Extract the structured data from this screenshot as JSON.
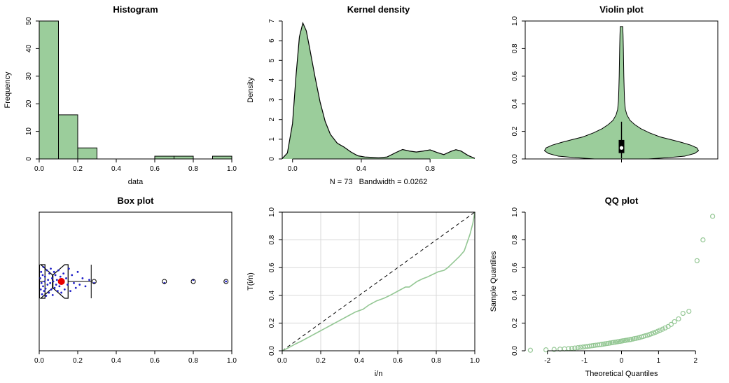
{
  "figure": {
    "background": "#ffffff"
  },
  "palette": {
    "green_fill": "#9BCD9B",
    "green_line": "#94C794",
    "black": "#000000",
    "blue": "#2020C8",
    "red": "#E80000",
    "grid": "#D9D9D9",
    "white": "#FFFFFF"
  },
  "chart_data": [
    {
      "type": "hist",
      "title": "Histogram",
      "xlabel": "data",
      "ylabel": "Frequency",
      "frame": "axes",
      "xlim": [
        0,
        1
      ],
      "ylim": [
        0,
        50
      ],
      "xticks": [
        0,
        0.2,
        0.4,
        0.6,
        0.8,
        1
      ],
      "xtick_labels": [
        "0.0",
        "0.2",
        "0.4",
        "0.6",
        "0.8",
        "1.0"
      ],
      "yticks": [
        0,
        10,
        20,
        30,
        40,
        50
      ],
      "ytick_labels": [
        "0",
        "10",
        "20",
        "30",
        "40",
        "50"
      ],
      "breaks": [
        0,
        0.1,
        0.2,
        0.3,
        0.4,
        0.5,
        0.6,
        0.7,
        0.8,
        0.9,
        1
      ],
      "counts": [
        50,
        16,
        4,
        0,
        0,
        0,
        1,
        1,
        0,
        1
      ]
    },
    {
      "type": "density",
      "title": "Kernel density",
      "xlabel": "N = 73   Bandwidth = 0.0262",
      "ylabel": "Density",
      "frame": "axes",
      "xlim": [
        -0.06,
        1.06
      ],
      "ylim": [
        0,
        7
      ],
      "xticks": [
        0,
        0.4,
        0.8
      ],
      "xtick_labels": [
        "0.0",
        "0.4",
        "0.8"
      ],
      "yticks": [
        0,
        1,
        2,
        3,
        4,
        5,
        6,
        7
      ],
      "ytick_labels": [
        "0",
        "1",
        "2",
        "3",
        "4",
        "5",
        "6",
        "7"
      ],
      "points": [
        [
          -0.06,
          0.02
        ],
        [
          -0.03,
          0.3
        ],
        [
          0,
          1.8
        ],
        [
          0.02,
          4.2
        ],
        [
          0.04,
          6.2
        ],
        [
          0.06,
          6.9
        ],
        [
          0.08,
          6.5
        ],
        [
          0.1,
          5.6
        ],
        [
          0.13,
          4.2
        ],
        [
          0.16,
          2.9
        ],
        [
          0.19,
          1.9
        ],
        [
          0.22,
          1.25
        ],
        [
          0.26,
          0.8
        ],
        [
          0.3,
          0.6
        ],
        [
          0.34,
          0.35
        ],
        [
          0.38,
          0.16
        ],
        [
          0.42,
          0.1
        ],
        [
          0.46,
          0.08
        ],
        [
          0.5,
          0.06
        ],
        [
          0.55,
          0.1
        ],
        [
          0.6,
          0.32
        ],
        [
          0.64,
          0.48
        ],
        [
          0.68,
          0.4
        ],
        [
          0.72,
          0.35
        ],
        [
          0.76,
          0.4
        ],
        [
          0.8,
          0.46
        ],
        [
          0.84,
          0.33
        ],
        [
          0.88,
          0.22
        ],
        [
          0.92,
          0.38
        ],
        [
          0.95,
          0.47
        ],
        [
          0.98,
          0.4
        ],
        [
          1.02,
          0.18
        ],
        [
          1.06,
          0.03
        ]
      ]
    },
    {
      "type": "violin",
      "title": "Violin plot",
      "xlabel": "",
      "ylabel": "",
      "frame": "box",
      "ylim": [
        0,
        1
      ],
      "yticks": [
        0,
        0.2,
        0.4,
        0.6,
        0.8,
        1
      ],
      "ytick_labels": [
        "0.0",
        "0.2",
        "0.4",
        "0.6",
        "0.8",
        "1.0"
      ],
      "profile": [
        [
          0,
          0.35
        ],
        [
          0.01,
          0.62
        ],
        [
          0.02,
          0.82
        ],
        [
          0.04,
          0.95
        ],
        [
          0.06,
          1
        ],
        [
          0.08,
          0.98
        ],
        [
          0.1,
          0.9
        ],
        [
          0.12,
          0.78
        ],
        [
          0.14,
          0.64
        ],
        [
          0.16,
          0.5
        ],
        [
          0.19,
          0.36
        ],
        [
          0.22,
          0.25
        ],
        [
          0.25,
          0.17
        ],
        [
          0.28,
          0.11
        ],
        [
          0.32,
          0.07
        ],
        [
          0.36,
          0.05
        ],
        [
          0.42,
          0.04
        ],
        [
          0.5,
          0.035
        ],
        [
          0.6,
          0.03
        ],
        [
          0.7,
          0.027
        ],
        [
          0.8,
          0.024
        ],
        [
          0.9,
          0.02
        ],
        [
          0.96,
          0.016
        ]
      ],
      "box": {
        "q1": 0.045,
        "median": 0.08,
        "q3": 0.135,
        "whisker_low": 0.005,
        "whisker_high": 0.27
      }
    },
    {
      "type": "boxh",
      "title": "Box plot",
      "xlabel": "",
      "ylabel": "",
      "frame": "box",
      "xlim": [
        0,
        1
      ],
      "xticks": [
        0,
        0.2,
        0.4,
        0.6,
        0.8,
        1
      ],
      "xtick_labels": [
        "0.0",
        "0.2",
        "0.4",
        "0.6",
        "0.8",
        "1.0"
      ],
      "box": {
        "q1": 0.03,
        "median": 0.07,
        "q3": 0.15,
        "notch_low": 0.008,
        "notch_high": 0.132,
        "whisker_low": 0.002,
        "whisker_high": 0.27
      },
      "outliers": [
        0.285,
        0.65,
        0.8,
        0.97
      ],
      "mean": 0.115,
      "jitter": [
        [
          0.005,
          -0.2
        ],
        [
          0.008,
          0.5
        ],
        [
          0.01,
          -0.6
        ],
        [
          0.012,
          0.1
        ],
        [
          0.015,
          0.8
        ],
        [
          0.018,
          -0.4
        ],
        [
          0.02,
          0.3
        ],
        [
          0.022,
          -0.9
        ],
        [
          0.025,
          0.6
        ],
        [
          0.028,
          0
        ],
        [
          0.03,
          -0.3
        ],
        [
          0.033,
          0.45
        ],
        [
          0.036,
          0.9
        ],
        [
          0.04,
          -0.7
        ],
        [
          0.043,
          0.2
        ],
        [
          0.046,
          -0.1
        ],
        [
          0.05,
          0.7
        ],
        [
          0.053,
          -0.5
        ],
        [
          0.057,
          0.1
        ],
        [
          0.06,
          -0.8
        ],
        [
          0.063,
          0.5
        ],
        [
          0.067,
          -0.2
        ],
        [
          0.07,
          0.85
        ],
        [
          0.073,
          0
        ],
        [
          0.077,
          -0.6
        ],
        [
          0.08,
          0.4
        ],
        [
          0.084,
          -0.4
        ],
        [
          0.088,
          0.2
        ],
        [
          0.092,
          -0.1
        ],
        [
          0.096,
          0.6
        ],
        [
          0.1,
          -0.7
        ],
        [
          0.105,
          0.3
        ],
        [
          0.11,
          -0.3
        ],
        [
          0.115,
          0.7
        ],
        [
          0.12,
          0
        ],
        [
          0.126,
          -0.5
        ],
        [
          0.132,
          0.5
        ],
        [
          0.14,
          -0.2
        ],
        [
          0.147,
          0.2
        ],
        [
          0.154,
          -0.8
        ],
        [
          0.162,
          0.6
        ],
        [
          0.17,
          -0.4
        ],
        [
          0.18,
          0.1
        ],
        [
          0.19,
          0.4
        ],
        [
          0.2,
          -0.6
        ],
        [
          0.21,
          0.2
        ],
        [
          0.225,
          -0.2
        ],
        [
          0.24,
          0.3
        ],
        [
          0.26,
          -0.1
        ],
        [
          0.285,
          0.1
        ],
        [
          0.65,
          0.1
        ],
        [
          0.8,
          -0.1
        ],
        [
          0.97,
          0
        ]
      ]
    },
    {
      "type": "ttt",
      "title": "",
      "xlabel": "i/n",
      "ylabel": "T(i/n)",
      "frame": "box",
      "grid": true,
      "xlim": [
        0,
        1
      ],
      "ylim": [
        0,
        1
      ],
      "xticks": [
        0,
        0.2,
        0.4,
        0.6,
        0.8,
        1
      ],
      "xtick_labels": [
        "0.0",
        "0.2",
        "0.4",
        "0.6",
        "0.8",
        "1.0"
      ],
      "yticks": [
        0,
        0.2,
        0.4,
        0.6,
        0.8,
        1
      ],
      "ytick_labels": [
        "0.0",
        "0.2",
        "0.4",
        "0.6",
        "0.8",
        "1.0"
      ],
      "points": [
        [
          0,
          0
        ],
        [
          0.03,
          0.02
        ],
        [
          0.07,
          0.05
        ],
        [
          0.1,
          0.07
        ],
        [
          0.14,
          0.1
        ],
        [
          0.18,
          0.13
        ],
        [
          0.22,
          0.16
        ],
        [
          0.26,
          0.19
        ],
        [
          0.3,
          0.22
        ],
        [
          0.34,
          0.25
        ],
        [
          0.38,
          0.28
        ],
        [
          0.42,
          0.3
        ],
        [
          0.45,
          0.33
        ],
        [
          0.49,
          0.36
        ],
        [
          0.53,
          0.38
        ],
        [
          0.56,
          0.4
        ],
        [
          0.6,
          0.43
        ],
        [
          0.64,
          0.46
        ],
        [
          0.66,
          0.46
        ],
        [
          0.7,
          0.5
        ],
        [
          0.73,
          0.52
        ],
        [
          0.75,
          0.53
        ],
        [
          0.78,
          0.55
        ],
        [
          0.81,
          0.57
        ],
        [
          0.84,
          0.58
        ],
        [
          0.86,
          0.6
        ],
        [
          0.89,
          0.64
        ],
        [
          0.92,
          0.68
        ],
        [
          0.945,
          0.72
        ],
        [
          0.96,
          0.78
        ],
        [
          0.975,
          0.84
        ],
        [
          0.99,
          0.92
        ],
        [
          1,
          1
        ]
      ]
    },
    {
      "type": "qq",
      "title": "QQ plot",
      "xlabel": "Theoretical Quantiles",
      "ylabel": "Sample Quantiles",
      "frame": "axes",
      "xlim": [
        -2.6,
        2.6
      ],
      "ylim": [
        0,
        1
      ],
      "xticks": [
        -2,
        -1,
        0,
        1,
        2
      ],
      "xtick_labels": [
        "-2",
        "-1",
        "0",
        "1",
        "2"
      ],
      "yticks": [
        0,
        0.2,
        0.4,
        0.6,
        0.8,
        1
      ],
      "ytick_labels": [
        "0.0",
        "0.2",
        "0.4",
        "0.6",
        "0.8",
        "1.0"
      ],
      "points": [
        [
          -2.46,
          0.004
        ],
        [
          -2.04,
          0.007
        ],
        [
          -1.82,
          0.01
        ],
        [
          -1.66,
          0.012
        ],
        [
          -1.54,
          0.014
        ],
        [
          -1.43,
          0.016
        ],
        [
          -1.34,
          0.018
        ],
        [
          -1.26,
          0.02
        ],
        [
          -1.18,
          0.022
        ],
        [
          -1.11,
          0.025
        ],
        [
          -1.04,
          0.027
        ],
        [
          -0.98,
          0.03
        ],
        [
          -0.92,
          0.032
        ],
        [
          -0.86,
          0.034
        ],
        [
          -0.8,
          0.036
        ],
        [
          -0.75,
          0.038
        ],
        [
          -0.7,
          0.04
        ],
        [
          -0.64,
          0.042
        ],
        [
          -0.59,
          0.044
        ],
        [
          -0.54,
          0.046
        ],
        [
          -0.49,
          0.048
        ],
        [
          -0.45,
          0.05
        ],
        [
          -0.4,
          0.052
        ],
        [
          -0.35,
          0.054
        ],
        [
          -0.31,
          0.056
        ],
        [
          -0.26,
          0.058
        ],
        [
          -0.22,
          0.06
        ],
        [
          -0.17,
          0.062
        ],
        [
          -0.13,
          0.064
        ],
        [
          -0.09,
          0.066
        ],
        [
          -0.04,
          0.068
        ],
        [
          0,
          0.07
        ],
        [
          0.04,
          0.072
        ],
        [
          0.09,
          0.074
        ],
        [
          0.13,
          0.076
        ],
        [
          0.17,
          0.078
        ],
        [
          0.22,
          0.08
        ],
        [
          0.26,
          0.082
        ],
        [
          0.31,
          0.085
        ],
        [
          0.35,
          0.088
        ],
        [
          0.4,
          0.09
        ],
        [
          0.45,
          0.093
        ],
        [
          0.49,
          0.096
        ],
        [
          0.54,
          0.1
        ],
        [
          0.59,
          0.104
        ],
        [
          0.64,
          0.108
        ],
        [
          0.7,
          0.112
        ],
        [
          0.75,
          0.117
        ],
        [
          0.8,
          0.122
        ],
        [
          0.86,
          0.128
        ],
        [
          0.92,
          0.134
        ],
        [
          0.98,
          0.141
        ],
        [
          1.04,
          0.148
        ],
        [
          1.11,
          0.156
        ],
        [
          1.18,
          0.165
        ],
        [
          1.26,
          0.175
        ],
        [
          1.34,
          0.19
        ],
        [
          1.43,
          0.21
        ],
        [
          1.54,
          0.23
        ],
        [
          1.66,
          0.27
        ],
        [
          1.82,
          0.285
        ],
        [
          2.04,
          0.65
        ],
        [
          2.2,
          0.8
        ],
        [
          2.46,
          0.97
        ]
      ]
    }
  ]
}
